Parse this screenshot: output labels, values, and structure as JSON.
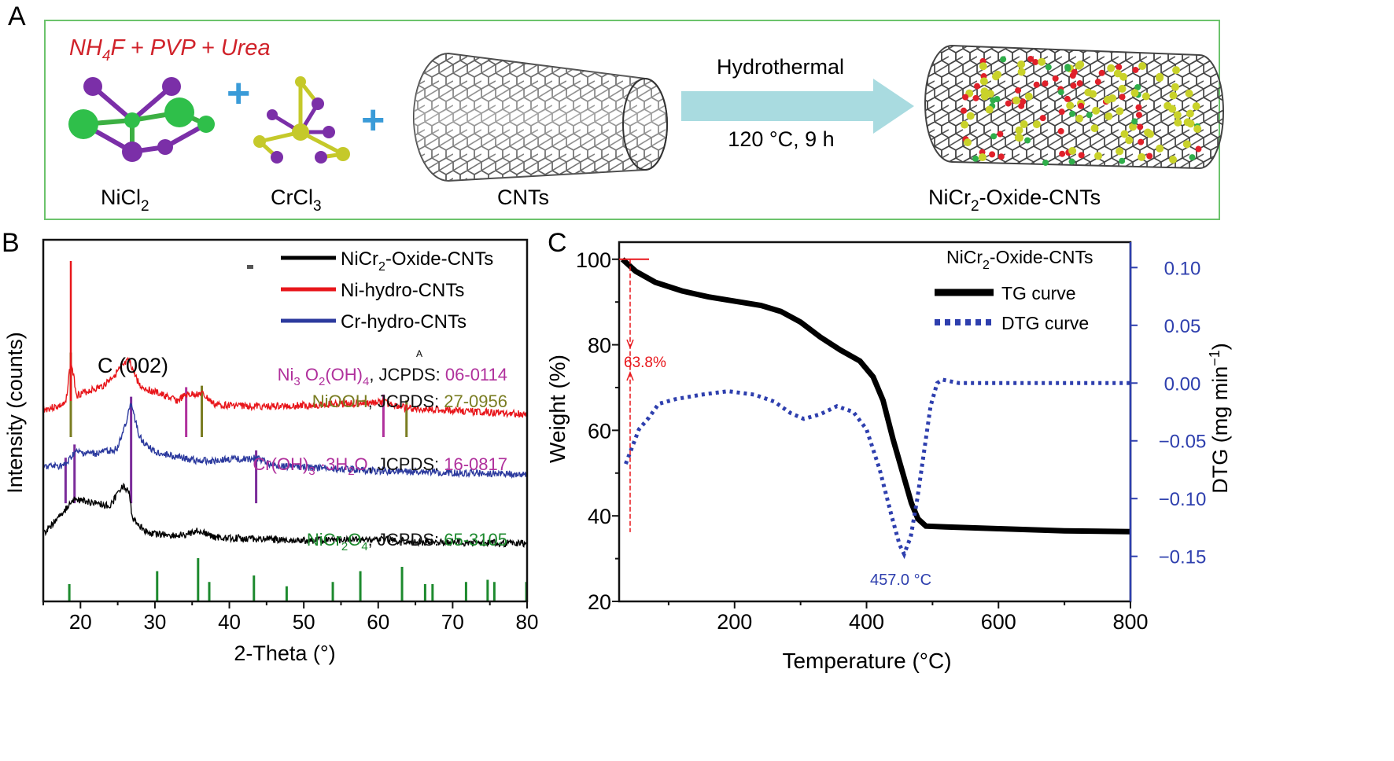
{
  "panel_a": {
    "label": "A",
    "reagents": "NH4F + PVP + Urea",
    "reagents_parts": [
      "NH",
      "4",
      "F + PVP + Urea"
    ],
    "nicl2": [
      "NiCl",
      "2"
    ],
    "crcl3": [
      "CrCl",
      "3"
    ],
    "cnts": "CNTs",
    "arrow_top": "Hydrothermal",
    "arrow_bottom": "120 °C, 9 h",
    "product": [
      "NiCr",
      "2",
      "-Oxide-CNTs"
    ],
    "border_color": "#6cc36c",
    "arrow_color": "#a9dbe0",
    "plus_color": "#3a9bd8"
  },
  "chart_data": [
    {
      "panel": "B",
      "type": "line",
      "xlabel": "2-Theta (°)",
      "ylabel": "Intensity (counts)",
      "xlim": [
        15,
        80
      ],
      "xticks": [
        20,
        30,
        40,
        50,
        60,
        70,
        80
      ],
      "grid": false,
      "legend_placement": "top-right",
      "legend": [
        {
          "parts": [
            "NiCr",
            "2",
            "-Oxide-CNTs"
          ],
          "color": "#000000"
        },
        {
          "parts": [
            "Ni-hydro-CNTs",
            "",
            ""
          ],
          "color": "#e8161b"
        },
        {
          "parts": [
            "Cr-hydro-CNTs",
            "",
            ""
          ],
          "color": "#2c3a9e"
        }
      ],
      "annotation": "C (002)",
      "stray_mark": "A",
      "series": [
        {
          "name": "Ni-hydro-CNTs",
          "color": "#e8161b",
          "offset": 2.0,
          "points": [
            [
              15,
              0.18
            ],
            [
              18,
              0.25
            ],
            [
              18.7,
              0.85
            ],
            [
              19.5,
              0.38
            ],
            [
              23,
              0.5
            ],
            [
              26.5,
              0.85
            ],
            [
              28,
              0.5
            ],
            [
              33,
              0.3
            ],
            [
              34.2,
              0.38
            ],
            [
              36.3,
              0.4
            ],
            [
              38,
              0.25
            ],
            [
              45,
              0.22
            ],
            [
              60.7,
              0.28
            ],
            [
              63.8,
              0.2
            ],
            [
              80,
              0.12
            ]
          ]
        },
        {
          "name": "Cr-hydro-CNTs",
          "color": "#2c3a9e",
          "offset": 1.1,
          "points": [
            [
              15,
              0.3
            ],
            [
              18,
              0.32
            ],
            [
              19.2,
              0.5
            ],
            [
              22,
              0.48
            ],
            [
              25,
              0.55
            ],
            [
              26.8,
              1.15
            ],
            [
              28,
              0.7
            ],
            [
              30,
              0.5
            ],
            [
              36,
              0.38
            ],
            [
              43.6,
              0.42
            ],
            [
              46,
              0.32
            ],
            [
              60,
              0.25
            ],
            [
              80,
              0.2
            ]
          ]
        },
        {
          "name": "NiCr2-Oxide-CNTs",
          "color": "#000000",
          "offset": 0.2,
          "points": [
            [
              15,
              0.3
            ],
            [
              17,
              0.5
            ],
            [
              19,
              0.75
            ],
            [
              22,
              0.72
            ],
            [
              24,
              0.66
            ],
            [
              25.6,
              0.95
            ],
            [
              26.5,
              0.85
            ],
            [
              27,
              0.5
            ],
            [
              29,
              0.3
            ],
            [
              33,
              0.26
            ],
            [
              35.8,
              0.33
            ],
            [
              38,
              0.24
            ],
            [
              42,
              0.23
            ],
            [
              50,
              0.2
            ],
            [
              61,
              0.22
            ],
            [
              65,
              0.18
            ],
            [
              80,
              0.16
            ]
          ]
        }
      ],
      "reference_patterns": [
        {
          "parts": [
            "Ni",
            "3",
            " O",
            "2",
            "(OH)",
            "4",
            ", JCPDS: ",
            "06-0114"
          ],
          "color": "#b0309c",
          "positions": [
            34.2,
            60.7
          ],
          "attach": "Ni-hydro-CNTs"
        },
        {
          "parts": [
            "NiOOH",
            ", JCPDS: ",
            "27-0956"
          ],
          "color": "#7a7d22",
          "positions": [
            18.7,
            36.3,
            63.8
          ],
          "attach": "Ni-hydro-CNTs"
        },
        {
          "parts": [
            "Cr(OH)",
            "3",
            " ·3H",
            "2",
            "O",
            ", JCPDS: ",
            "16-0817"
          ],
          "color": "#7b2c9a",
          "text_color": "#b0309c",
          "positions": [
            18.0,
            19.2,
            26.8,
            43.6
          ],
          "attach": "Cr-hydro-CNTs"
        },
        {
          "parts": [
            "NiCr",
            "2",
            "O",
            "4",
            ", JCPDS: ",
            "65-3105"
          ],
          "color": "#1d8a2e",
          "positions": [
            18.5,
            30.3,
            35.8,
            37.3,
            43.3,
            47.7,
            53.9,
            57.6,
            63.2,
            66.3,
            67.3,
            71.8,
            74.7,
            75.6,
            79.9
          ],
          "heights": [
            0.4,
            0.7,
            1.0,
            0.45,
            0.6,
            0.35,
            0.45,
            0.7,
            0.8,
            0.4,
            0.4,
            0.45,
            0.5,
            0.45,
            0.45
          ],
          "attach": "bottom"
        }
      ]
    },
    {
      "panel": "C",
      "type": "line",
      "xlabel": "Temperature (°C)",
      "ylabel": "Weight (%)",
      "y2label": [
        "DTG (mg min",
        "−1",
        ")"
      ],
      "xlim": [
        25,
        800
      ],
      "ylim": [
        20,
        104
      ],
      "y2lim": [
        -0.189,
        0.122
      ],
      "xticks": [
        200,
        400,
        600,
        800
      ],
      "yticks": [
        20,
        40,
        60,
        80,
        100
      ],
      "y2ticks": [
        0.1,
        0.05,
        0.0,
        -0.05,
        -0.1,
        -0.15
      ],
      "y2tick_labels": [
        "0.10",
        "0.05",
        "0.00",
        "−0.05",
        "−0.10",
        "−0.15"
      ],
      "grid": false,
      "legend_title": [
        "NiCr",
        "2",
        "-Oxide-CNTs"
      ],
      "legend_placement": "top-right",
      "series": [
        {
          "name": "TG curve",
          "axis": "left",
          "color": "#000000",
          "style": "solid",
          "points": [
            [
              30,
              100
            ],
            [
              50,
              97.2
            ],
            [
              80,
              94.6
            ],
            [
              120,
              92.6
            ],
            [
              160,
              91.2
            ],
            [
              200,
              90.2
            ],
            [
              240,
              89.2
            ],
            [
              270,
              87.8
            ],
            [
              300,
              85.3
            ],
            [
              330,
              81.8
            ],
            [
              360,
              78.8
            ],
            [
              390,
              76.2
            ],
            [
              410,
              72.5
            ],
            [
              425,
              67
            ],
            [
              440,
              58
            ],
            [
              455,
              50
            ],
            [
              468,
              43
            ],
            [
              478,
              39.3
            ],
            [
              490,
              37.6
            ],
            [
              520,
              37.4
            ],
            [
              600,
              37
            ],
            [
              700,
              36.5
            ],
            [
              800,
              36.3
            ]
          ]
        },
        {
          "name": "DTG curve",
          "axis": "right",
          "color": "#2e3fae",
          "style": "dotted",
          "points": [
            [
              35,
              -0.07
            ],
            [
              45,
              -0.055
            ],
            [
              55,
              -0.04
            ],
            [
              70,
              -0.03
            ],
            [
              85,
              -0.018
            ],
            [
              110,
              -0.014
            ],
            [
              150,
              -0.01
            ],
            [
              190,
              -0.007
            ],
            [
              230,
              -0.01
            ],
            [
              260,
              -0.016
            ],
            [
              285,
              -0.026
            ],
            [
              305,
              -0.031
            ],
            [
              330,
              -0.027
            ],
            [
              355,
              -0.02
            ],
            [
              380,
              -0.025
            ],
            [
              400,
              -0.04
            ],
            [
              420,
              -0.075
            ],
            [
              438,
              -0.115
            ],
            [
              450,
              -0.14
            ],
            [
              457,
              -0.148
            ],
            [
              467,
              -0.133
            ],
            [
              477,
              -0.1
            ],
            [
              487,
              -0.06
            ],
            [
              497,
              -0.02
            ],
            [
              507,
              0.0
            ],
            [
              515,
              0.003
            ],
            [
              540,
              0.0
            ],
            [
              600,
              0.0
            ],
            [
              700,
              0.0
            ],
            [
              800,
              0.0
            ]
          ]
        }
      ],
      "annotations": {
        "weight_loss": "63.8%",
        "peak": "457.0 °C",
        "loss_color": "#e8161b",
        "peak_color": "#2e3fae"
      }
    }
  ],
  "panel_labels": {
    "b": "B",
    "c": "C"
  }
}
